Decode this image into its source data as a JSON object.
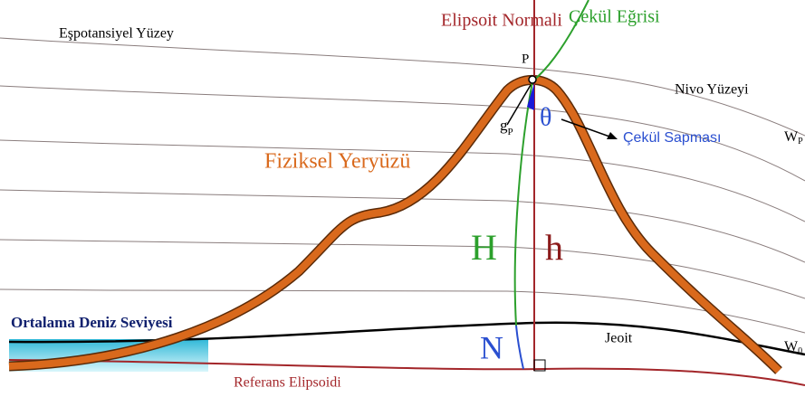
{
  "labels": {
    "equipotential": "Eşpotansiyel Yüzey",
    "ellipsoid_normal": "Elipsoit Normali",
    "plumb_line": "Çekül Eğrisi",
    "point": "P",
    "level_surface": "Nivo Yüzeyi",
    "gravity": {
      "main": "g",
      "sub": "P"
    },
    "theta": "θ",
    "deflection": "Çekül Sapması",
    "w_p": {
      "main": "W",
      "sub": "P"
    },
    "physical_surface": "Fiziksel Yeryüzü",
    "orthometric": "H",
    "ellipsoidal": "h",
    "msl": "Ortalama Deniz Seviyesi",
    "undulation": "N",
    "geoid": "Jeoit",
    "w_0": {
      "main": "W",
      "sub": "0"
    },
    "ellipsoid": "Referans Elipsoidi"
  }
}
